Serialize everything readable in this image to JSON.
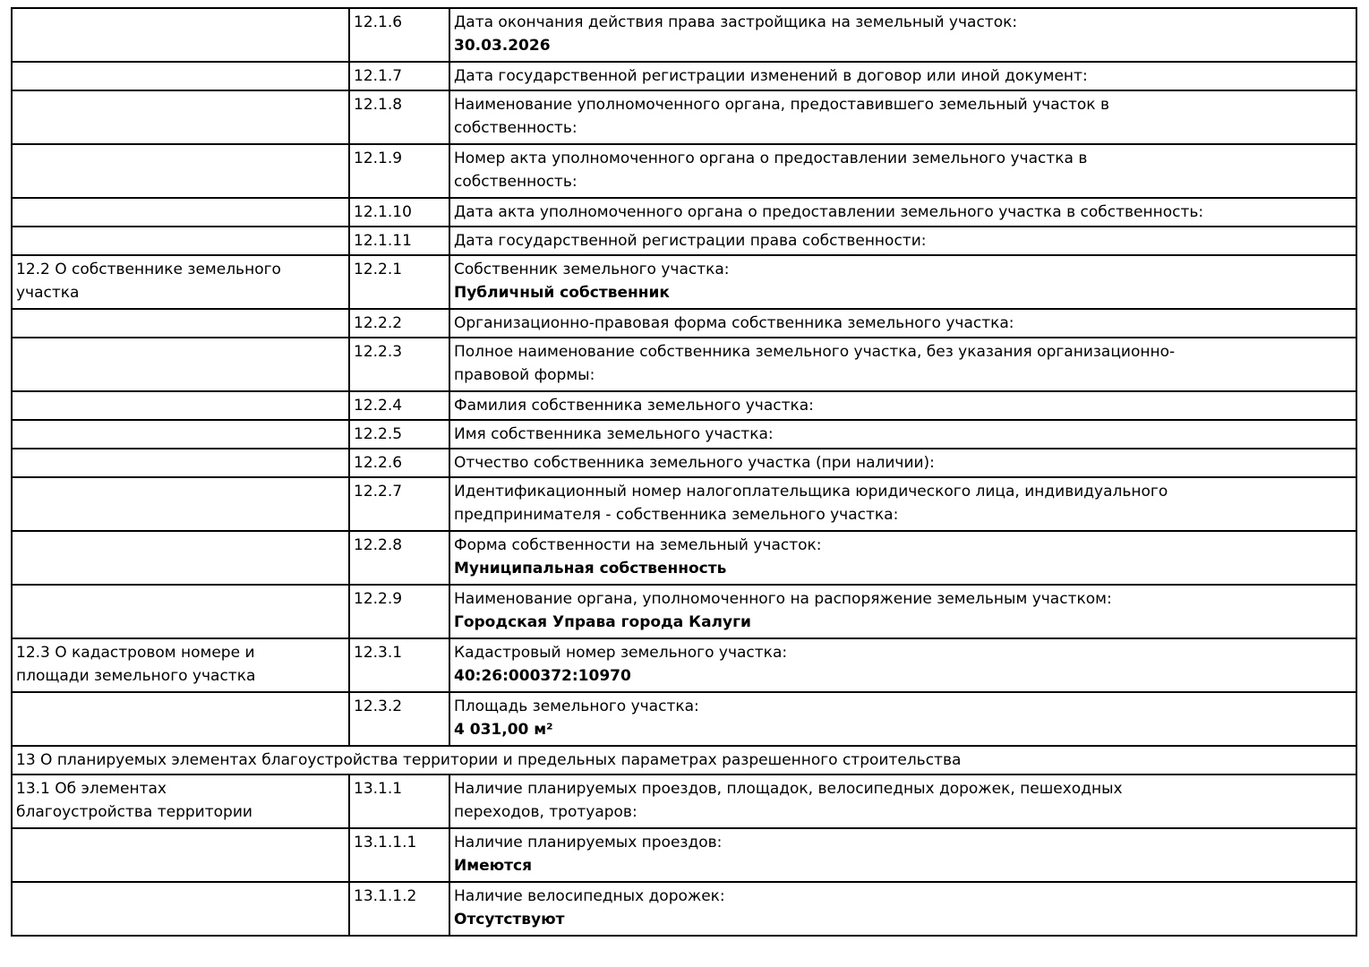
{
  "document": {
    "kind": "project-declaration-table",
    "colors": {
      "background": "#ffffff",
      "border": "#000000",
      "text": "#000000"
    },
    "table": {
      "rows": [
        {
          "type": "item",
          "section": "",
          "num": "12.1.6",
          "label": "Дата окончания действия права застройщика на земельный участок:",
          "value": "30.03.2026"
        },
        {
          "type": "item",
          "section": "",
          "num": "12.1.7",
          "label": "Дата государственной регистрации изменений в договор или иной документ:",
          "value": ""
        },
        {
          "type": "item",
          "section": "",
          "num": "12.1.8",
          "label": "Наименование уполномоченного органа, предоставившего земельный участок в\nсобственность:",
          "value": ""
        },
        {
          "type": "item",
          "section": "",
          "num": "12.1.9",
          "label": "Номер акта уполномоченного органа о предоставлении земельного участка в\nсобственность:",
          "value": ""
        },
        {
          "type": "item",
          "section": "",
          "num": "12.1.10",
          "label": "Дата акта уполномоченного органа о предоставлении земельного участка в собственность:",
          "value": ""
        },
        {
          "type": "item",
          "section": "",
          "num": "12.1.11",
          "label": "Дата государственной регистрации права собственности:",
          "value": ""
        },
        {
          "type": "item",
          "section": "12.2 О собственнике земельного\nучастка",
          "num": "12.2.1",
          "label": "Собственник земельного участка:",
          "value": "Публичный собственник"
        },
        {
          "type": "item",
          "section": "",
          "num": "12.2.2",
          "label": "Организационно-правовая форма собственника земельного участка:",
          "value": ""
        },
        {
          "type": "item",
          "section": "",
          "num": "12.2.3",
          "label": "Полное наименование собственника земельного участка, без указания организационно-\nправовой формы:",
          "value": ""
        },
        {
          "type": "item",
          "section": "",
          "num": "12.2.4",
          "label": "Фамилия собственника земельного участка:",
          "value": ""
        },
        {
          "type": "item",
          "section": "",
          "num": "12.2.5",
          "label": "Имя собственника земельного участка:",
          "value": ""
        },
        {
          "type": "item",
          "section": "",
          "num": "12.2.6",
          "label": "Отчество собственника земельного участка (при наличии):",
          "value": ""
        },
        {
          "type": "item",
          "section": "",
          "num": "12.2.7",
          "label": "Идентификационный номер налогоплательщика юридического лица, индивидуального\nпредпринимателя - собственника земельного участка:",
          "value": ""
        },
        {
          "type": "item",
          "section": "",
          "num": "12.2.8",
          "label": "Форма собственности на земельный участок:",
          "value": "Муниципальная собственность"
        },
        {
          "type": "item",
          "section": "",
          "num": "12.2.9",
          "label": "Наименование органа, уполномоченного на распоряжение земельным участком:",
          "value": "Городская Управа города Калуги"
        },
        {
          "type": "item",
          "section": "12.3 О кадастровом номере и\nплощади земельного участка",
          "num": "12.3.1",
          "label": "Кадастровый номер земельного участка:",
          "value": "40:26:000372:10970"
        },
        {
          "type": "item",
          "section": "",
          "num": "12.3.2",
          "label": "Площадь земельного участка:",
          "value": "4 031,00 м²"
        },
        {
          "type": "section_header",
          "text": "13 О планируемых элементах благоустройства территории и предельных параметрах разрешенного строительства"
        },
        {
          "type": "item",
          "section": "13.1 Об элементах\nблагоустройства территории",
          "num": "13.1.1",
          "label": "Наличие планируемых проездов, площадок, велосипедных дорожек, пешеходных\nпереходов, тротуаров:",
          "value": ""
        },
        {
          "type": "item",
          "section": "",
          "num": "13.1.1.1",
          "label": "Наличие планируемых проездов:",
          "value": "Имеются"
        },
        {
          "type": "item",
          "section": "",
          "num": "13.1.1.2",
          "label": "Наличие велосипедных дорожек:",
          "value": "Отсутствуют"
        }
      ]
    }
  }
}
